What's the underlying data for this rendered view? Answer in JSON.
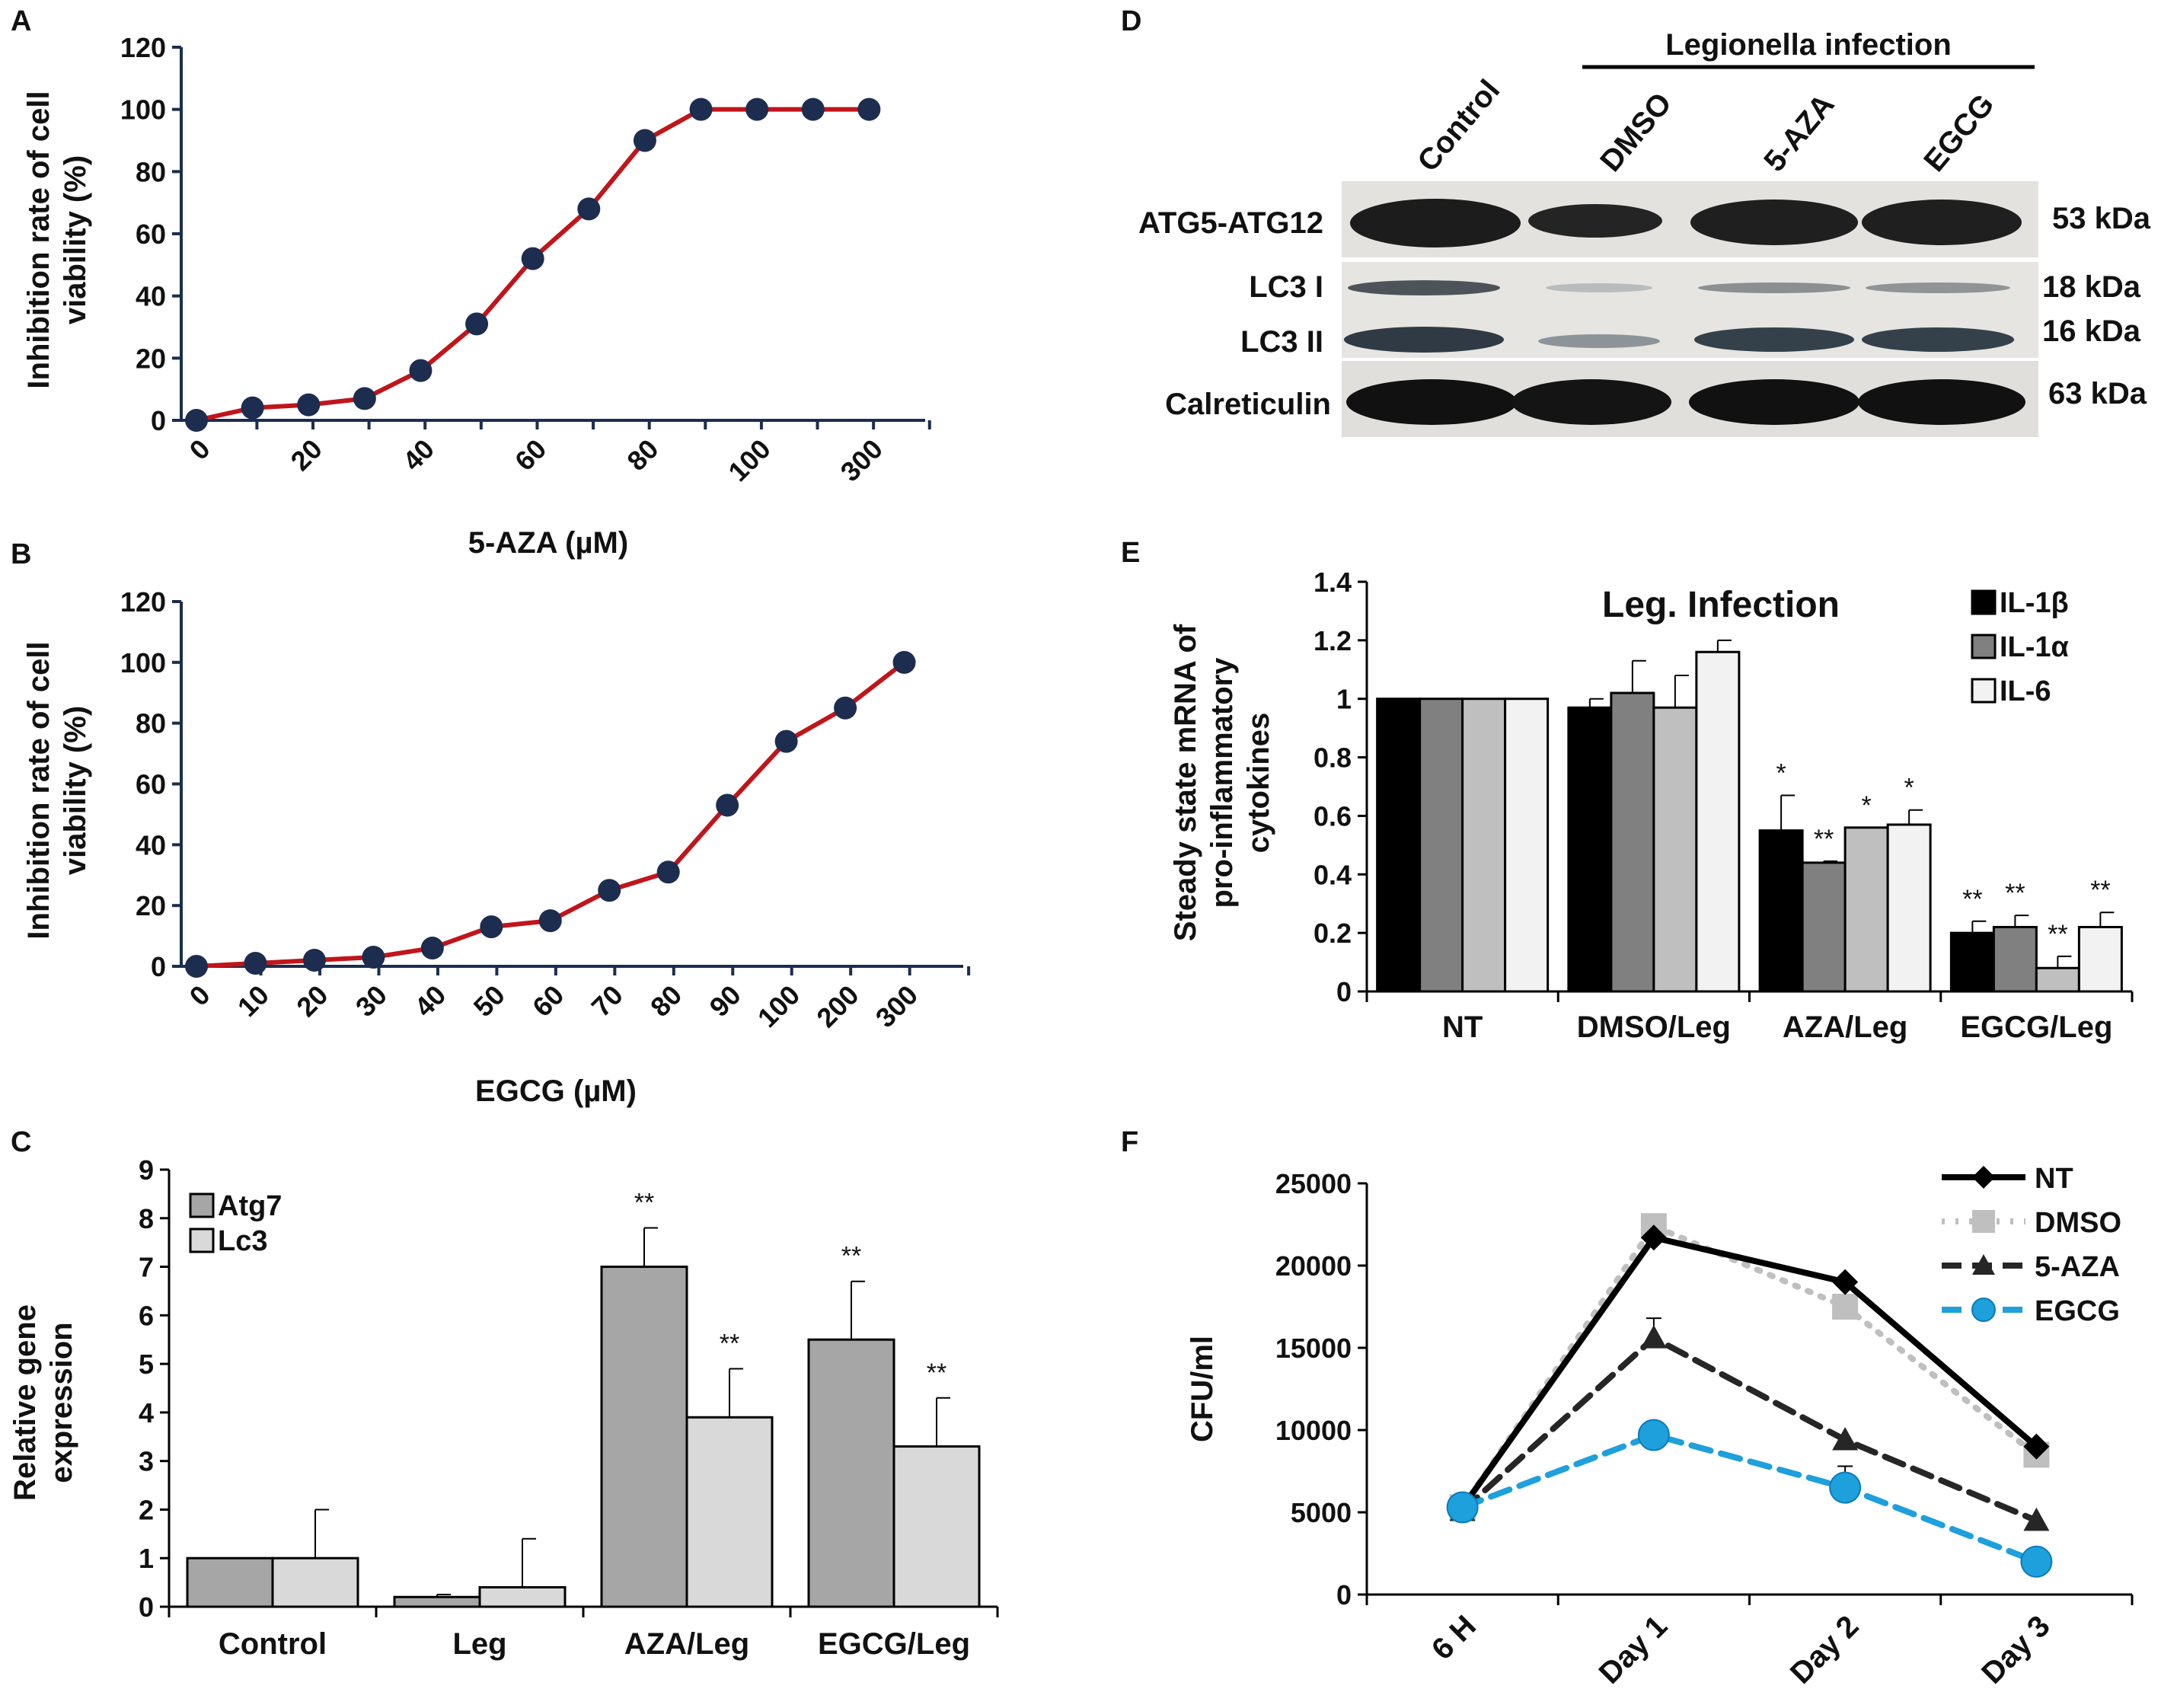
{
  "chart_data": [
    {
      "panel": "A",
      "type": "line",
      "title": "",
      "xlabel": "5-AZA (µM)",
      "ylabel": [
        "Inhibition rate of cell",
        "viability (%)"
      ],
      "categories": [
        "0",
        "",
        "20",
        "",
        "40",
        "",
        "60",
        "",
        "80",
        "",
        "100",
        "",
        "300"
      ],
      "values": [
        0,
        4,
        5,
        7,
        16,
        31,
        52,
        68,
        90,
        100,
        100,
        100,
        100
      ],
      "ylim": [
        0,
        120
      ],
      "yticks": [
        "0",
        "20",
        "40",
        "60",
        "80",
        "100",
        "120"
      ],
      "grid": false,
      "line_color": "#c0151b",
      "marker_color": "#1c2d4f"
    },
    {
      "panel": "B",
      "type": "line",
      "title": "",
      "xlabel": "EGCG (µM)",
      "ylabel": [
        "Inhibition rate of cell",
        "viability (%)"
      ],
      "categories": [
        "0",
        "10",
        "20",
        "30",
        "40",
        "50",
        "60",
        "70",
        "80",
        "90",
        "100",
        "200",
        "300"
      ],
      "values": [
        0,
        1,
        2,
        3,
        6,
        13,
        15,
        25,
        31,
        53,
        74,
        85,
        100
      ],
      "ylim": [
        0,
        120
      ],
      "yticks": [
        "0",
        "20",
        "40",
        "60",
        "80",
        "100",
        "120"
      ],
      "grid": false,
      "line_color": "#c0151b",
      "marker_color": "#1c2d4f"
    },
    {
      "panel": "C",
      "type": "bar",
      "title": "",
      "xlabel": "",
      "ylabel": [
        "Relative gene",
        "expression"
      ],
      "categories": [
        "Control",
        "Leg",
        "AZA/Leg",
        "EGCG/Leg"
      ],
      "series": [
        {
          "name": "Atg7",
          "values": [
            1.0,
            0.2,
            7.0,
            5.5
          ],
          "errors": [
            0,
            0.05,
            0.8,
            1.2
          ],
          "color": "#a6a6a6"
        },
        {
          "name": "Lc3",
          "values": [
            1.0,
            0.4,
            3.9,
            3.3
          ],
          "errors": [
            1.0,
            1.0,
            1.0,
            1.0
          ],
          "color": "#d9d9d9"
        }
      ],
      "annotations": [
        {
          "category": 2,
          "series": 0,
          "text": "**"
        },
        {
          "category": 2,
          "series": 1,
          "text": "**"
        },
        {
          "category": 3,
          "series": 0,
          "text": "**"
        },
        {
          "category": 3,
          "series": 1,
          "text": "**"
        }
      ],
      "ylim": [
        0,
        9
      ],
      "yticks": [
        "0",
        "1",
        "2",
        "3",
        "4",
        "5",
        "6",
        "7",
        "8",
        "9"
      ],
      "legend": "top-left",
      "grid": false
    },
    {
      "panel": "E",
      "type": "bar",
      "title": "Leg. Infection",
      "xlabel": "",
      "ylabel": [
        "Steady state mRNA of",
        "pro-inflammatory",
        "cytokines"
      ],
      "categories": [
        "NT",
        "DMSO/Leg",
        "AZA/Leg",
        "EGCG/Leg"
      ],
      "series": [
        {
          "name": "IL-1β",
          "values": [
            1.0,
            0.97,
            0.55,
            0.2
          ],
          "errors": [
            0,
            0.03,
            0.12,
            0.04
          ],
          "color": "#000000"
        },
        {
          "name": "IL-1α",
          "values": [
            1.0,
            1.02,
            0.44,
            0.22
          ],
          "errors": [
            0,
            0.11,
            0.005,
            0.04
          ],
          "color": "#808080"
        },
        {
          "name": "",
          "values": [
            1.0,
            0.97,
            0.56,
            0.08
          ],
          "errors": [
            0,
            0.11,
            0,
            0.04
          ],
          "color": "#bfbfbf"
        },
        {
          "name": "IL-6",
          "values": [
            1.0,
            1.16,
            0.57,
            0.22
          ],
          "errors": [
            0,
            0.04,
            0.05,
            0.05
          ],
          "color": "#f2f2f2"
        }
      ],
      "annotations": [
        {
          "category": 2,
          "series": 0,
          "text": "*"
        },
        {
          "category": 2,
          "series": 1,
          "text": "**"
        },
        {
          "category": 2,
          "series": 2,
          "text": "*"
        },
        {
          "category": 2,
          "series": 3,
          "text": "*"
        },
        {
          "category": 3,
          "series": 0,
          "text": "**"
        },
        {
          "category": 3,
          "series": 1,
          "text": "**"
        },
        {
          "category": 3,
          "series": 2,
          "text": "**"
        },
        {
          "category": 3,
          "series": 3,
          "text": "**"
        }
      ],
      "ylim": [
        0,
        1.4
      ],
      "yticks": [
        "0",
        "0.2",
        "0.4",
        "0.6",
        "0.8",
        "1",
        "1.2",
        "1.4"
      ],
      "legend": "top-right",
      "grid": false
    },
    {
      "panel": "F",
      "type": "line",
      "title": "",
      "xlabel": "",
      "ylabel": [
        "CFU/ml"
      ],
      "categories": [
        "6 H",
        "Day 1",
        "Day 2",
        "Day 3"
      ],
      "series": [
        {
          "name": "NT",
          "values": [
            5300,
            21700,
            19000,
            9000
          ],
          "errors": [
            0,
            0,
            0,
            0
          ],
          "color": "#000000",
          "dash": "solid",
          "marker": "diamond"
        },
        {
          "name": "DMSO",
          "values": [
            5300,
            22400,
            17500,
            8500
          ],
          "errors": [
            0,
            0,
            0,
            0
          ],
          "color": "#bfbfbf",
          "dash": "dotted",
          "marker": "square"
        },
        {
          "name": "5-AZA",
          "values": [
            5100,
            15600,
            9400,
            4500
          ],
          "errors": [
            0,
            1200,
            0,
            0
          ],
          "color": "#262626",
          "dash": "dashed",
          "marker": "triangle"
        },
        {
          "name": "EGCG",
          "values": [
            5300,
            9700,
            6500,
            2000
          ],
          "errors": [
            0,
            0,
            1300,
            0
          ],
          "color": "#1ea0dc",
          "dash": "dashed",
          "marker": "circle"
        }
      ],
      "ylim": [
        0,
        25000
      ],
      "yticks": [
        "0",
        "5000",
        "10000",
        "15000",
        "20000",
        "25000"
      ],
      "legend": "top-right",
      "grid": false
    }
  ],
  "panels": {
    "a": "A",
    "b": "B",
    "c": "C",
    "d": "D",
    "e": "E",
    "f": "F"
  },
  "blot": {
    "header": "Legionella infection",
    "lanes": [
      "Control",
      "DMSO",
      "5-AZA",
      "EGCG"
    ],
    "rows": {
      "atg": "ATG5-ATG12",
      "lc3i": "LC3 I",
      "lc3ii": "LC3 II",
      "calr": "Calreticulin"
    },
    "sizes": {
      "atg": "53 kDa",
      "lc3i": "18 kDa",
      "lc3ii": "16 kDa",
      "calr": "63 kDa"
    }
  }
}
